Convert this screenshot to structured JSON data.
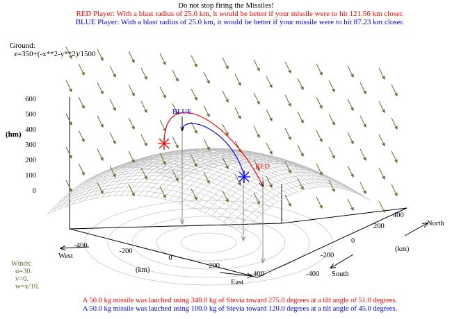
{
  "game": {
    "title": "Do not stop firing the Missiles!",
    "red_status": "RED Player: With a blast radius of 25.0 km, it would be better if your missile were to hit 121.56 km closer.",
    "blue_status": "BLUE Player: With a blast radius of 25.0 km, it would be better if your missile were to hit 87.23 km closer.",
    "ground_label": "Ground:",
    "ground_equation": "z=350+(-x**2-y**2)/1500",
    "winds": {
      "label": "Winds:",
      "u": "u=30.",
      "v": "v=0.",
      "w": "w=x/10."
    },
    "red_launch": "A 50.0 kg missile was lauched using 340.0 kg of Stevia toward 275.0 degrees at a tilt angle of 51.0 degrees.",
    "blue_launch": "A 50.0 kg missile was lauched using 100.0 kg of Stevia toward 120.0 degrees at a tilt angle of 45.0 degrees.",
    "colors": {
      "red": "#ff0000",
      "blue": "#0000ff",
      "winds": "#6b6b2f",
      "surface": "#b4b4b4"
    }
  },
  "plot": {
    "z_axis_label": "(hm)",
    "z_ticks": [
      "600",
      "500",
      "400",
      "300",
      "200",
      "100",
      "0"
    ],
    "east_axis_label": "(km)",
    "east_ticks": [
      "-400",
      "-200",
      "0",
      "200",
      "400"
    ],
    "north_axis_label": "(km)",
    "north_ticks": [
      "-400",
      "-200",
      "0",
      "200",
      "400"
    ],
    "west_label": "West",
    "east_label": "East",
    "north_label": "North",
    "south_label": "South",
    "red_marker_label": "RED",
    "blue_marker_label": "BLUE"
  }
}
